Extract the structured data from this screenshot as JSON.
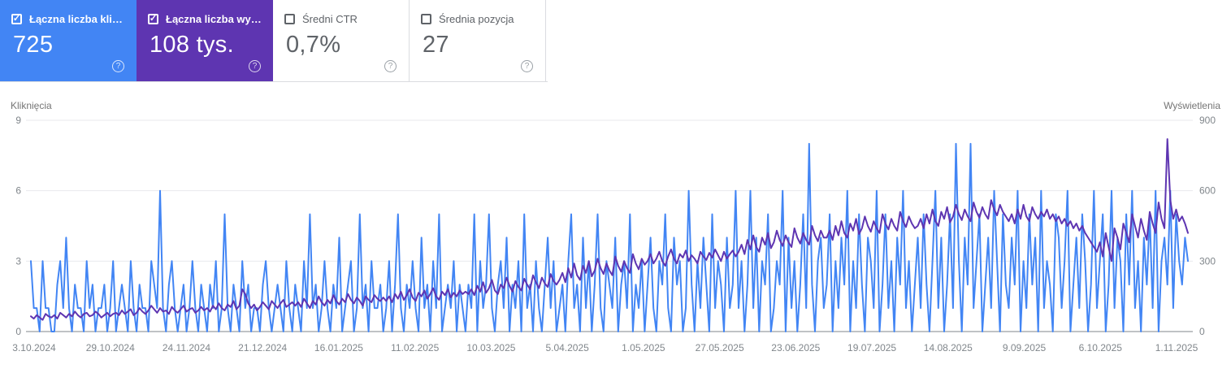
{
  "help_icon": "?",
  "summary_cards": [
    {
      "label": "Łączna liczba klik…",
      "value": "725",
      "checked": true,
      "bg": "#4285f4"
    },
    {
      "label": "Łączna liczba wy…",
      "value": "108 tys.",
      "checked": true,
      "bg": "#5e35b1"
    },
    {
      "label": "Średni CTR",
      "value": "0,7%",
      "checked": false,
      "bg": "#ffffff"
    },
    {
      "label": "Średnia pozycja",
      "value": "27",
      "checked": false,
      "bg": "#ffffff"
    }
  ],
  "colors": {
    "clicks": "#4285f4",
    "impressions": "#5e35b1",
    "grid": "#e8eaed",
    "axis_line": "#80868b",
    "tick_text": "#80868b",
    "card_border": "#dadce0"
  },
  "chart_data": {
    "type": "line",
    "grid": true,
    "legend_position": "none",
    "y_left": {
      "label": "Kliknięcia",
      "max": 9,
      "ticks": [
        "9",
        "6",
        "3",
        "0"
      ]
    },
    "y_right": {
      "label": "Wyświetlenia",
      "max": 900,
      "ticks": [
        "900",
        "600",
        "300",
        "0"
      ]
    },
    "x_tick_labels": [
      "3.10.2024",
      "29.10.2024",
      "24.11.2024",
      "21.12.2024",
      "16.01.2025",
      "11.02.2025",
      "10.03.2025",
      "5.04.2025",
      "1.05.2025",
      "27.05.2025",
      "23.06.2025",
      "19.07.2025",
      "14.08.2025",
      "9.09.2025",
      "6.10.2025",
      "1.11.2025"
    ],
    "series": [
      {
        "name": "Kliknięcia",
        "axis": "left",
        "color": "#4285f4",
        "values": [
          3,
          1,
          1,
          0,
          3,
          1,
          1,
          0,
          0,
          2,
          3,
          1,
          4,
          1,
          0,
          2,
          1,
          1,
          0,
          3,
          1,
          2,
          0,
          1,
          1,
          2,
          0,
          1,
          3,
          0,
          1,
          2,
          1,
          0,
          3,
          1,
          0,
          2,
          1,
          1,
          0,
          3,
          2,
          1,
          6,
          1,
          0,
          2,
          3,
          1,
          0,
          1,
          2,
          0,
          1,
          3,
          1,
          0,
          2,
          1,
          0,
          2,
          1,
          3,
          0,
          1,
          5,
          1,
          0,
          2,
          1,
          0,
          3,
          1,
          2,
          0,
          1,
          1,
          0,
          2,
          3,
          1,
          0,
          1,
          2,
          1,
          0,
          3,
          1,
          0,
          2,
          1,
          0,
          3,
          1,
          5,
          1,
          2,
          0,
          1,
          3,
          1,
          0,
          2,
          1,
          4,
          0,
          1,
          2,
          3,
          0,
          1,
          5,
          1,
          2,
          0,
          3,
          1,
          1,
          2,
          0,
          1,
          3,
          0,
          2,
          5,
          1,
          0,
          2,
          1,
          3,
          1,
          0,
          4,
          1,
          2,
          0,
          3,
          1,
          5,
          0,
          1,
          2,
          1,
          3,
          0,
          2,
          1,
          0,
          2,
          1,
          5,
          0,
          3,
          1,
          2,
          5,
          1,
          0,
          2,
          3,
          1,
          4,
          0,
          2,
          1,
          3,
          0,
          5,
          1,
          2,
          0,
          3,
          1,
          0,
          2,
          4,
          1,
          3,
          0,
          1,
          2,
          0,
          3,
          5,
          1,
          2,
          0,
          4,
          1,
          3,
          0,
          2,
          5,
          1,
          0,
          3,
          2,
          1,
          4,
          0,
          2,
          3,
          1,
          5,
          0,
          2,
          1,
          3,
          0,
          2,
          4,
          1,
          0,
          3,
          2,
          5,
          1,
          0,
          4,
          2,
          3,
          0,
          1,
          6,
          2,
          0,
          3,
          1,
          4,
          2,
          0,
          5,
          1,
          3,
          2,
          0,
          4,
          1,
          2,
          6,
          1,
          3,
          0,
          2,
          6,
          1,
          4,
          0,
          3,
          2,
          5,
          0,
          1,
          3,
          2,
          6,
          0,
          4,
          1,
          3,
          0,
          2,
          5,
          1,
          8,
          2,
          0,
          3,
          4,
          1,
          2,
          5,
          0,
          3,
          1,
          4,
          2,
          6,
          0,
          3,
          1,
          5,
          2,
          0,
          4,
          3,
          1,
          6,
          0,
          2,
          5,
          1,
          3,
          0,
          4,
          2,
          6,
          1,
          3,
          0,
          2,
          4,
          1,
          5,
          2,
          0,
          3,
          6,
          1,
          4,
          0,
          2,
          5,
          1,
          8,
          3,
          0,
          4,
          2,
          8,
          1,
          3,
          5,
          0,
          2,
          4,
          1,
          6,
          3,
          0,
          5,
          2,
          1,
          4,
          2,
          6,
          0,
          3,
          1,
          5,
          2,
          4,
          0,
          6,
          1,
          3,
          2,
          0,
          5,
          4,
          1,
          3,
          6,
          0,
          2,
          4,
          1,
          5,
          3,
          0,
          2,
          6,
          1,
          3,
          5,
          0,
          2,
          6,
          1,
          4,
          3,
          0,
          5,
          2,
          6,
          1,
          3,
          0,
          4,
          2,
          5,
          1,
          6,
          0,
          3,
          4,
          2,
          6,
          1,
          5,
          3,
          2,
          4,
          3
        ]
      },
      {
        "name": "Wyświetlenia",
        "axis": "right",
        "color": "#5e35b1",
        "values": [
          65,
          55,
          70,
          60,
          50,
          75,
          65,
          60,
          70,
          55,
          80,
          70,
          60,
          75,
          65,
          85,
          70,
          60,
          75,
          80,
          65,
          70,
          85,
          75,
          60,
          70,
          80,
          65,
          75,
          80,
          70,
          90,
          75,
          85,
          95,
          70,
          80,
          100,
          85,
          75,
          90,
          110,
          95,
          80,
          100,
          85,
          90,
          75,
          105,
          90,
          80,
          95,
          110,
          85,
          95,
          100,
          80,
          90,
          105,
          90,
          100,
          85,
          110,
          95,
          120,
          100,
          90,
          115,
          105,
          130,
          95,
          110,
          180,
          160,
          120,
          100,
          115,
          90,
          105,
          125,
          110,
          95,
          130,
          115,
          100,
          120,
          135,
          105,
          115,
          125,
          110,
          125,
          105,
          140,
          120,
          100,
          130,
          115,
          150,
          125,
          110,
          135,
          120,
          155,
          130,
          115,
          140,
          125,
          160,
          135,
          120,
          145,
          130,
          110,
          150,
          135,
          125,
          155,
          140,
          130,
          145,
          130,
          150,
          125,
          160,
          140,
          170,
          135,
          155,
          180,
          145,
          130,
          165,
          150,
          175,
          140,
          160,
          185,
          150,
          135,
          170,
          155,
          180,
          145,
          165,
          150,
          175,
          160,
          170,
          160,
          180,
          155,
          195,
          170,
          210,
          165,
          185,
          220,
          175,
          160,
          200,
          185,
          230,
          195,
          170,
          215,
          190,
          175,
          225,
          200,
          180,
          240,
          210,
          185,
          230,
          205,
          190,
          245,
          215,
          200,
          220,
          250,
          210,
          270,
          230,
          290,
          240,
          220,
          280,
          250,
          300,
          235,
          260,
          310,
          270,
          245,
          290,
          260,
          240,
          320,
          280,
          255,
          300,
          270,
          250,
          330,
          290,
          265,
          310,
          285,
          300,
          330,
          290,
          310,
          340,
          300,
          280,
          320,
          350,
          310,
          290,
          330,
          315,
          345,
          300,
          325,
          310,
          290,
          340,
          320,
          305,
          335,
          315,
          350,
          325,
          300,
          340,
          310,
          330,
          345,
          320,
          340,
          370,
          330,
          390,
          350,
          410,
          360,
          340,
          400,
          370,
          420,
          355,
          380,
          430,
          390,
          365,
          410,
          380,
          360,
          440,
          400,
          375,
          420,
          390,
          370,
          450,
          410,
          385,
          430,
          400,
          400,
          430,
          390,
          450,
          410,
          470,
          420,
          400,
          460,
          430,
          480,
          415,
          440,
          490,
          450,
          425,
          470,
          440,
          420,
          500,
          460,
          435,
          480,
          450,
          430,
          510,
          470,
          445,
          490,
          460,
          440,
          450,
          480,
          440,
          500,
          460,
          520,
          470,
          450,
          510,
          480,
          530,
          465,
          490,
          540,
          500,
          475,
          520,
          490,
          470,
          550,
          510,
          485,
          530,
          500,
          480,
          560,
          520,
          495,
          540,
          510,
          490,
          470,
          500,
          460,
          520,
          480,
          540,
          490,
          470,
          530,
          500,
          480,
          510,
          490,
          520,
          480,
          500,
          470,
          490,
          460,
          480,
          450,
          470,
          440,
          460,
          430,
          450,
          420,
          400,
          380,
          360,
          340,
          380,
          320,
          420,
          360,
          300,
          440,
          400,
          350,
          460,
          420,
          380,
          500,
          450,
          400,
          480,
          430,
          390,
          510,
          460,
          420,
          550,
          480,
          440,
          820,
          560,
          480,
          520,
          470,
          490,
          460,
          420
        ]
      }
    ]
  }
}
